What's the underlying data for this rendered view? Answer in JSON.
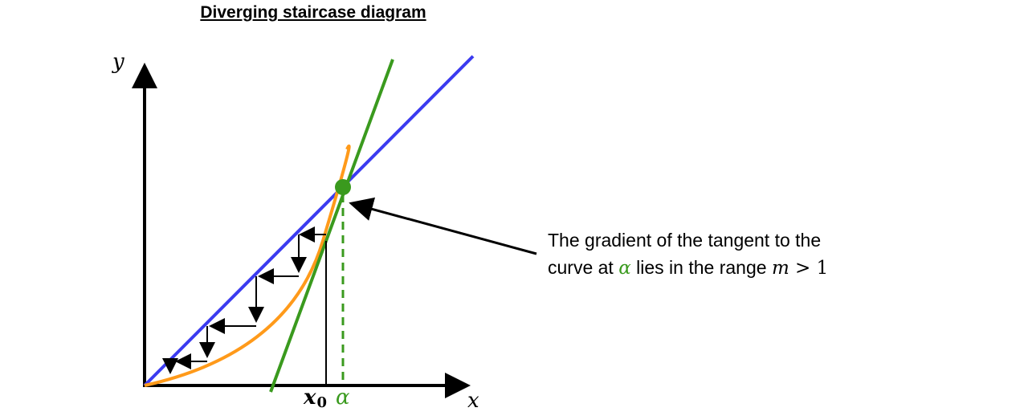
{
  "diagram": {
    "title": "Diverging staircase diagram",
    "axes": {
      "x_label": "x",
      "y_label": "y"
    },
    "markers": {
      "x0_symbol": "x",
      "x0_subscript": "0",
      "alpha_symbol": "α"
    },
    "annotation": {
      "line1": "The gradient of the tangent to the",
      "line2_pre": "curve at ",
      "line2_alpha": "α",
      "line2_mid": " lies in the range ",
      "line2_m": "m",
      "line2_gt": " > 1"
    },
    "colors": {
      "line_y_equals_x": "#3b3bf0",
      "curve": "#ff9a1a",
      "tangent": "#3a9a1e",
      "fixed_point": "#3a9a1e",
      "staircase": "#000000",
      "axes": "#000000"
    }
  }
}
